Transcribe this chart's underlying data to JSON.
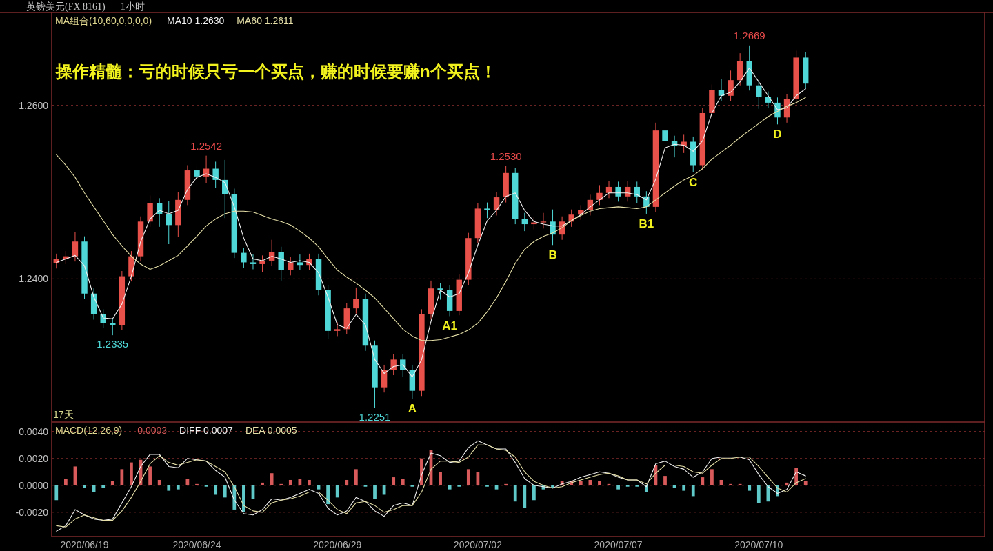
{
  "chart_data": [
    {
      "type": "candlestick",
      "title": "英镑美元(FX 8161)",
      "subtitle": "1小时",
      "legend_title": "MA组合(10,60,0,0,0,0)",
      "legend": "top left",
      "grid": "y",
      "tick_labels": "y",
      "ylim": [
        1.2235,
        1.2707
      ],
      "yticks": [
        {
          "value": 1.24,
          "label": "1.2400"
        },
        {
          "value": 1.26,
          "label": "1.2600"
        }
      ],
      "categories": [
        null,
        null,
        null,
        "2020/06/19",
        null,
        null,
        null,
        null,
        null,
        null,
        null,
        null,
        null,
        null,
        null,
        "2020/06/24",
        null,
        null,
        null,
        null,
        null,
        null,
        null,
        null,
        null,
        null,
        null,
        null,
        null,
        null,
        "2020/06/29",
        null,
        null,
        null,
        null,
        null,
        null,
        null,
        null,
        null,
        null,
        null,
        null,
        null,
        null,
        "2020/07/02",
        null,
        null,
        null,
        null,
        null,
        null,
        null,
        null,
        null,
        null,
        null,
        null,
        null,
        null,
        "2020/07/07",
        null,
        null,
        null,
        null,
        null,
        null,
        null,
        null,
        null,
        null,
        null,
        null,
        null,
        null,
        "2020/07/10",
        null,
        null,
        null,
        null,
        null
      ],
      "ohlc": [
        [
          1.2418,
          1.2429,
          1.2412,
          1.2423
        ],
        [
          1.2423,
          1.2432,
          1.2417,
          1.2426
        ],
        [
          1.2426,
          1.2454,
          1.242,
          1.2443
        ],
        [
          1.2443,
          1.2449,
          1.2377,
          1.2383
        ],
        [
          1.2383,
          1.2389,
          1.2353,
          1.2359
        ],
        [
          1.2359,
          1.2365,
          1.2343,
          1.2349
        ],
        [
          1.2349,
          1.2355,
          1.2335,
          1.2347
        ],
        [
          1.2347,
          1.2409,
          1.2341,
          1.2403
        ],
        [
          1.2403,
          1.2432,
          1.2397,
          1.2426
        ],
        [
          1.2426,
          1.2472,
          1.242,
          1.2466
        ],
        [
          1.2466,
          1.2496,
          1.246,
          1.2487
        ],
        [
          1.2487,
          1.2493,
          1.246,
          1.2475
        ],
        [
          1.2475,
          1.249,
          1.244,
          1.2462
        ],
        [
          1.2462,
          1.25,
          1.2448,
          1.2491
        ],
        [
          1.2491,
          1.2531,
          1.2485,
          1.2525
        ],
        [
          1.2525,
          1.2531,
          1.2508,
          1.2518
        ],
        [
          1.2518,
          1.2542,
          1.251,
          1.2527
        ],
        [
          1.2527,
          1.2535,
          1.2505,
          1.2514
        ],
        [
          1.2514,
          1.2537,
          1.247,
          1.2498
        ],
        [
          1.2498,
          1.2504,
          1.2424,
          1.243
        ],
        [
          1.243,
          1.2436,
          1.2413,
          1.2419
        ],
        [
          1.2419,
          1.2428,
          1.2411,
          1.2417
        ],
        [
          1.2417,
          1.2427,
          1.2408,
          1.2421
        ],
        [
          1.2421,
          1.2445,
          1.2415,
          1.2431
        ],
        [
          1.2431,
          1.2437,
          1.2398,
          1.241
        ],
        [
          1.241,
          1.2425,
          1.2404,
          1.2419
        ],
        [
          1.2419,
          1.2428,
          1.241,
          1.2416
        ],
        [
          1.2416,
          1.2429,
          1.241,
          1.2423
        ],
        [
          1.2423,
          1.2429,
          1.2381,
          1.2387
        ],
        [
          1.2387,
          1.2393,
          1.2331,
          1.234
        ],
        [
          1.234,
          1.235,
          1.2334,
          1.2342
        ],
        [
          1.2342,
          1.2372,
          1.2336,
          1.2366
        ],
        [
          1.2366,
          1.239,
          1.236,
          1.2377
        ],
        [
          1.2377,
          1.2383,
          1.2317,
          1.2323
        ],
        [
          1.2323,
          1.2329,
          1.2251,
          1.2275
        ],
        [
          1.2275,
          1.2301,
          1.2269,
          1.2295
        ],
        [
          1.2295,
          1.2313,
          1.2289,
          1.2307
        ],
        [
          1.2307,
          1.2313,
          1.2287,
          1.2295
        ],
        [
          1.2295,
          1.2301,
          1.2262,
          1.2271
        ],
        [
          1.2271,
          1.2365,
          1.2265,
          1.2359
        ],
        [
          1.2359,
          1.2398,
          1.2353,
          1.2389
        ],
        [
          1.2389,
          1.2395,
          1.2376,
          1.2387
        ],
        [
          1.2387,
          1.2393,
          1.2357,
          1.2363
        ],
        [
          1.2363,
          1.2405,
          1.2358,
          1.2399
        ],
        [
          1.2399,
          1.2453,
          1.2393,
          1.2447
        ],
        [
          1.2447,
          1.2487,
          1.2441,
          1.2481
        ],
        [
          1.2481,
          1.2488,
          1.247,
          1.2479
        ],
        [
          1.2479,
          1.25,
          1.2473,
          1.2494
        ],
        [
          1.2494,
          1.253,
          1.2488,
          1.2522
        ],
        [
          1.2522,
          1.2528,
          1.2463,
          1.2469
        ],
        [
          1.2469,
          1.2476,
          1.2455,
          1.2463
        ],
        [
          1.2463,
          1.2471,
          1.2457,
          1.2465
        ],
        [
          1.2465,
          1.2476,
          1.2458,
          1.2466
        ],
        [
          1.2466,
          1.248,
          1.2439,
          1.2451
        ],
        [
          1.2451,
          1.2472,
          1.2445,
          1.2466
        ],
        [
          1.2466,
          1.248,
          1.246,
          1.2474
        ],
        [
          1.2474,
          1.2485,
          1.2468,
          1.2479
        ],
        [
          1.2479,
          1.2497,
          1.2473,
          1.2491
        ],
        [
          1.2491,
          1.2508,
          1.2485,
          1.2499
        ],
        [
          1.2499,
          1.2513,
          1.2493,
          1.2506
        ],
        [
          1.2506,
          1.2512,
          1.2489,
          1.2495
        ],
        [
          1.2495,
          1.2513,
          1.2489,
          1.2506
        ],
        [
          1.2506,
          1.2512,
          1.2487,
          1.2495
        ],
        [
          1.2495,
          1.2501,
          1.2475,
          1.2483
        ],
        [
          1.2483,
          1.258,
          1.2477,
          1.2571
        ],
        [
          1.2571,
          1.2577,
          1.2545,
          1.2559
        ],
        [
          1.2559,
          1.2565,
          1.254,
          1.2553
        ],
        [
          1.2553,
          1.2566,
          1.2545,
          1.2558
        ],
        [
          1.2558,
          1.2564,
          1.2523,
          1.2531
        ],
        [
          1.2531,
          1.2597,
          1.2525,
          1.2591
        ],
        [
          1.2591,
          1.2624,
          1.2585,
          1.2618
        ],
        [
          1.2618,
          1.263,
          1.2605,
          1.2611
        ],
        [
          1.2611,
          1.264,
          1.2605,
          1.2629
        ],
        [
          1.2629,
          1.266,
          1.2623,
          1.2651
        ],
        [
          1.2651,
          1.2669,
          1.2617,
          1.2623
        ],
        [
          1.2623,
          1.2629,
          1.2596,
          1.261
        ],
        [
          1.261,
          1.2616,
          1.2597,
          1.2603
        ],
        [
          1.2603,
          1.2609,
          1.2578,
          1.2586
        ],
        [
          1.2586,
          1.2613,
          1.258,
          1.2607
        ],
        [
          1.2607,
          1.2663,
          1.2601,
          1.2655
        ],
        [
          1.2655,
          1.2661,
          1.2619,
          1.2625
        ]
      ],
      "series": [
        {
          "name": "MA10 1.2630",
          "type": "line",
          "color": "#f0f0f0",
          "values": [
            1.2419,
            1.2423,
            1.2427,
            1.2415,
            1.2379,
            1.2355,
            1.2354,
            1.2371,
            1.2403,
            1.2443,
            1.2469,
            1.2479,
            1.2475,
            1.2479,
            1.2503,
            1.2517,
            1.2521,
            1.2517,
            1.2511,
            1.2483,
            1.2447,
            1.2423,
            1.2421,
            1.2426,
            1.2423,
            1.2419,
            1.2421,
            1.2419,
            1.2407,
            1.2379,
            1.2347,
            1.2343,
            1.2359,
            1.2347,
            1.2307,
            1.2291,
            1.2299,
            1.2301,
            1.2287,
            1.2307,
            1.2351,
            1.2387,
            1.2379,
            1.2383,
            1.2407,
            1.2439,
            1.2467,
            1.2479,
            1.2495,
            1.2499,
            1.2479,
            1.2466,
            1.2463,
            1.2461,
            1.2461,
            1.2467,
            1.2474,
            1.2483,
            1.2491,
            1.2499,
            1.2499,
            1.2499,
            1.2497,
            1.2491,
            1.2515,
            1.2551,
            1.2555,
            1.2554,
            1.2547,
            1.2559,
            1.2591,
            1.2611,
            1.2615,
            1.2627,
            1.2643,
            1.2627,
            1.2611,
            1.2595,
            1.2597,
            1.2611,
            1.2619
          ]
        },
        {
          "name": "MA60 1.2611",
          "type": "line",
          "color": "#e6e0a8",
          "values": [
            1.2543,
            1.2531,
            1.2517,
            1.2499,
            1.2483,
            1.2467,
            1.2451,
            1.2438,
            1.2426,
            1.2417,
            1.2411,
            1.2415,
            1.2421,
            1.2427,
            1.2438,
            1.2449,
            1.2461,
            1.2469,
            1.2475,
            1.2478,
            1.2478,
            1.2477,
            1.2473,
            1.2469,
            1.2466,
            1.2462,
            1.2455,
            1.2447,
            1.2437,
            1.2423,
            1.241,
            1.2402,
            1.2395,
            1.2387,
            1.2378,
            1.2366,
            1.2354,
            1.2342,
            1.2334,
            1.2329,
            1.2329,
            1.233,
            1.2333,
            1.2336,
            1.2341,
            1.2349,
            1.2362,
            1.2378,
            1.2397,
            1.2418,
            1.2434,
            1.2443,
            1.2449,
            1.2453,
            1.2459,
            1.2467,
            1.2473,
            1.2478,
            1.2481,
            1.2482,
            1.2483,
            1.2482,
            1.2481,
            1.2483,
            1.2491,
            1.2499,
            1.2507,
            1.2514,
            1.2519,
            1.2527,
            1.2538,
            1.2546,
            1.2554,
            1.2563,
            1.2571,
            1.2579,
            1.2587,
            1.2593,
            1.2599,
            1.2603,
            1.2609
          ]
        }
      ],
      "annotations": [
        "操作精髓：亏的时候只亏一个买点，赚的时候要赚n个买点！",
        "17天",
        {
          "text": "1.2542",
          "y": 1.2542
        },
        {
          "text": "1.2335",
          "y": 1.2335
        },
        {
          "text": "1.2251",
          "y": 1.2251
        },
        {
          "text": "A",
          "y": 1.2262
        },
        {
          "text": "A1",
          "y": 1.2357
        },
        {
          "text": "1.2530",
          "y": 1.253
        },
        {
          "text": "B",
          "y": 1.2439
        },
        {
          "text": "B1",
          "y": 1.2475
        },
        {
          "text": "C",
          "y": 1.2523
        },
        {
          "text": "1.2669",
          "y": 1.2669
        },
        {
          "text": "D",
          "y": 1.2578
        }
      ]
    },
    {
      "type": "bar",
      "legend_title": "MACD(12,26,9)",
      "legend": "top left",
      "grid": "y",
      "ylim": [
        -0.0038,
        0.0047
      ],
      "yticks": [
        {
          "value": 0.004,
          "label": "0.0040"
        },
        {
          "value": 0.002,
          "label": "0.0020"
        },
        {
          "value": 0,
          "label": "0.0000"
        },
        {
          "value": -0.002,
          "label": "-0.0020"
        }
      ],
      "categories": [
        null,
        null,
        null,
        "2020/06/19",
        null,
        null,
        null,
        null,
        null,
        null,
        null,
        null,
        null,
        null,
        null,
        "2020/06/24",
        null,
        null,
        null,
        null,
        null,
        null,
        null,
        null,
        null,
        null,
        null,
        null,
        null,
        null,
        "2020/06/29",
        null,
        null,
        null,
        null,
        null,
        null,
        null,
        null,
        null,
        null,
        null,
        null,
        null,
        null,
        "2020/07/02",
        null,
        null,
        null,
        null,
        null,
        null,
        null,
        null,
        null,
        null,
        null,
        null,
        null,
        null,
        "2020/07/07",
        null,
        null,
        null,
        null,
        null,
        null,
        null,
        null,
        null,
        null,
        null,
        null,
        null,
        null,
        "2020/07/10",
        null,
        null,
        null,
        null,
        null
      ],
      "series": [
        {
          "name": "0.0003",
          "type": "bar",
          "colors": [
            "#5fc8c8",
            "#d85a5a",
            "#d85a5a",
            "#5fc8c8",
            "#5fc8c8",
            "#5fc8c8",
            "#d85a5a",
            "#d85a5a",
            "#d85a5a",
            "#d85a5a",
            "#d85a5a",
            "#d85a5a",
            "#5fc8c8",
            "#5fc8c8",
            "#d85a5a",
            "#d85a5a",
            "#5fc8c8",
            "#5fc8c8",
            "#5fc8c8",
            "#5fc8c8",
            "#5fc8c8",
            "#5fc8c8",
            "#d85a5a",
            "#d85a5a",
            "#d85a5a",
            "#d85a5a",
            "#d85a5a",
            "#d85a5a",
            "#5fc8c8",
            "#5fc8c8",
            "#5fc8c8",
            "#d85a5a",
            "#d85a5a",
            "#5fc8c8",
            "#5fc8c8",
            "#5fc8c8",
            "#d85a5a",
            "#d85a5a",
            "#5fc8c8",
            "#d85a5a",
            "#d85a5a",
            "#d85a5a",
            "#5fc8c8",
            "#5fc8c8",
            "#d85a5a",
            "#d85a5a",
            "#5fc8c8",
            "#5fc8c8",
            "#d85a5a",
            "#5fc8c8",
            "#5fc8c8",
            "#5fc8c8",
            "#5fc8c8",
            "#5fc8c8",
            "#d85a5a",
            "#d85a5a",
            "#d85a5a",
            "#d85a5a",
            "#d85a5a",
            "#d85a5a",
            "#5fc8c8",
            "#5fc8c8",
            "#5fc8c8",
            "#5fc8c8",
            "#d85a5a",
            "#d85a5a",
            "#5fc8c8",
            "#5fc8c8",
            "#5fc8c8",
            "#d85a5a",
            "#d85a5a",
            "#d85a5a",
            "#d85a5a",
            "#d85a5a",
            "#5fc8c8",
            "#5fc8c8",
            "#5fc8c8",
            "#5fc8c8",
            "#d85a5a",
            "#d85a5a",
            "#d85a5a"
          ],
          "values": [
            -0.0011,
            0.0005,
            0.0014,
            -0.0002,
            -0.0005,
            -0.0002,
            0.0003,
            0.0012,
            0.0017,
            0.0019,
            0.0014,
            0.0004,
            -0.0004,
            -0.0003,
            0.0005,
            0.0001,
            -0.0001,
            -0.0007,
            -0.0009,
            -0.0018,
            -0.002,
            -0.001,
            0.0002,
            0.0009,
            0.0001,
            0.0004,
            0.0005,
            0.0004,
            -0.0003,
            -0.0014,
            -0.0009,
            0.0004,
            0.0012,
            -0.0001,
            -0.001,
            -0.0007,
            0.0006,
            0.0005,
            -0.0001,
            0.002,
            0.0026,
            0.001,
            -0.0003,
            -0.0001,
            0.0012,
            0.001,
            -0.0001,
            -0.0003,
            0.0001,
            -0.0012,
            -0.0017,
            -0.0011,
            -0.0003,
            -0.0002,
            0.0003,
            0.0003,
            0.0003,
            0.0004,
            0.0003,
            0.0001,
            -0.0003,
            -0.0001,
            -0.0001,
            -0.0005,
            0.0015,
            0.0007,
            -0.0002,
            -0.0004,
            -0.0008,
            0.0006,
            0.0012,
            0.0004,
            0.0001,
            0.0001,
            -0.0004,
            -0.0013,
            -0.0012,
            -0.0008,
            0.0002,
            0.0013,
            0.0003
          ]
        },
        {
          "name": "DIFF 0.0007",
          "type": "line",
          "color": "#f0f0f0",
          "values": [
            -0.0034,
            -0.003,
            -0.0018,
            -0.0022,
            -0.0025,
            -0.0026,
            -0.0025,
            -0.0013,
            -0.0001,
            0.0014,
            0.0023,
            0.0023,
            0.0014,
            0.0013,
            0.002,
            0.0019,
            0.0018,
            0.0011,
            0.0006,
            -0.0011,
            -0.0021,
            -0.0022,
            -0.0018,
            -0.001,
            -0.0011,
            -0.0009,
            -0.0006,
            -0.0003,
            -0.0006,
            -0.0017,
            -0.0022,
            -0.0019,
            -0.0009,
            -0.0012,
            -0.0019,
            -0.0023,
            -0.0015,
            -0.0013,
            -0.0015,
            0.0008,
            0.0024,
            0.0022,
            0.0017,
            0.0018,
            0.0028,
            0.0033,
            0.003,
            0.0027,
            0.0027,
            0.0017,
            0.0005,
            0,
            -0.0001,
            -0.0002,
            0.0001,
            0.0003,
            0.0006,
            0.0008,
            0.001,
            0.0009,
            0.0006,
            0.0004,
            0.0004,
            -0.0001,
            0.0016,
            0.0018,
            0.0014,
            0.0012,
            0.0006,
            0.001,
            0.002,
            0.0021,
            0.0021,
            0.0021,
            0.0019,
            0.0008,
            -0.0001,
            -0.0006,
            -0.0003,
            0.001,
            0.0007
          ]
        },
        {
          "name": "DEA 0.0005",
          "type": "line",
          "color": "#e6e0a8",
          "values": [
            -0.003,
            -0.0031,
            -0.0025,
            -0.0022,
            -0.0024,
            -0.0026,
            -0.0026,
            -0.0019,
            -0.0009,
            0.0003,
            0.0016,
            0.0022,
            0.0017,
            0.0015,
            0.0017,
            0.0019,
            0.0018,
            0.0014,
            0.001,
            -0.0001,
            -0.0015,
            -0.0019,
            -0.002,
            -0.0013,
            -0.0011,
            -0.001,
            -0.0008,
            -0.0005,
            -0.0005,
            -0.0011,
            -0.0018,
            -0.0021,
            -0.0013,
            -0.0012,
            -0.0015,
            -0.002,
            -0.0018,
            -0.0015,
            -0.0015,
            -0.0005,
            0.0012,
            0.0018,
            0.0018,
            0.0017,
            0.0021,
            0.003,
            0.003,
            0.0027,
            0.0026,
            0.0021,
            0.001,
            0.0003,
            0,
            -0.0002,
            -0.0001,
            0.0002,
            0.0004,
            0.0006,
            0.0008,
            0.0009,
            0.0007,
            0.0004,
            0.0004,
            0.0001,
            0.0009,
            0.0015,
            0.0015,
            0.0014,
            0.001,
            0.0009,
            0.0015,
            0.002,
            0.002,
            0.0021,
            0.0021,
            0.0014,
            0.0006,
            -0.0002,
            -0.0005,
            0.0002,
            0.0005
          ]
        }
      ]
    }
  ]
}
